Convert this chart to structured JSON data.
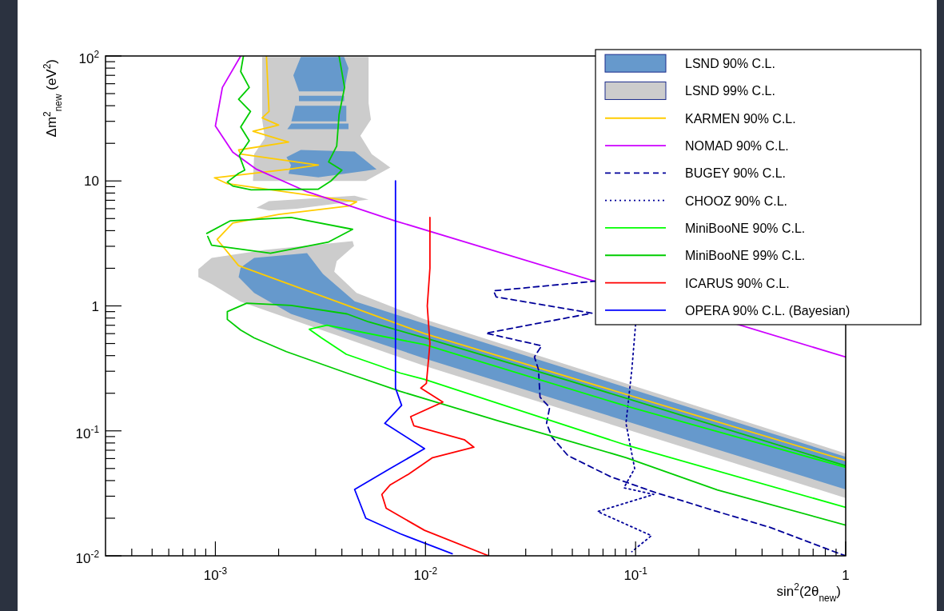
{
  "chart_data": {
    "type": "line",
    "xlabel": "sin$^{2}$(2θ$_{new}$)",
    "ylabel": "Δm$^{2}$$_{new}$ (eV$^{2}$)",
    "log": "xy",
    "xlim": [
      0.0003,
      1
    ],
    "ylim": [
      0.01,
      100
    ],
    "xticks": [
      {
        "value": 0.0004,
        "label": null
      },
      {
        "value": 0.0005,
        "label": null
      },
      {
        "value": 0.0006,
        "label": null
      },
      {
        "value": 0.0007,
        "label": null
      },
      {
        "value": 0.0008,
        "label": null
      },
      {
        "value": 0.0009,
        "label": null
      },
      {
        "value": 0.001,
        "label": "10$^{-3}$"
      },
      {
        "value": 0.002,
        "label": null
      },
      {
        "value": 0.003,
        "label": null
      },
      {
        "value": 0.004,
        "label": null
      },
      {
        "value": 0.005,
        "label": null
      },
      {
        "value": 0.006,
        "label": null
      },
      {
        "value": 0.007,
        "label": null
      },
      {
        "value": 0.008,
        "label": null
      },
      {
        "value": 0.009,
        "label": null
      },
      {
        "value": 0.01,
        "label": "10$^{-2}$"
      },
      {
        "value": 0.02,
        "label": null
      },
      {
        "value": 0.03,
        "label": null
      },
      {
        "value": 0.04,
        "label": null
      },
      {
        "value": 0.05,
        "label": null
      },
      {
        "value": 0.06,
        "label": null
      },
      {
        "value": 0.07,
        "label": null
      },
      {
        "value": 0.08,
        "label": null
      },
      {
        "value": 0.09,
        "label": null
      },
      {
        "value": 0.1,
        "label": "10$^{-1}$"
      },
      {
        "value": 0.2,
        "label": null
      },
      {
        "value": 0.3,
        "label": null
      },
      {
        "value": 0.4,
        "label": null
      },
      {
        "value": 0.5,
        "label": null
      },
      {
        "value": 0.6,
        "label": null
      },
      {
        "value": 0.7,
        "label": null
      },
      {
        "value": 0.8,
        "label": null
      },
      {
        "value": 0.9,
        "label": null
      },
      1
    ],
    "yticks": [
      {
        "value": 0.01,
        "label": "10$^{-2}$"
      },
      {
        "value": 0.02,
        "label": null
      },
      {
        "value": 0.03,
        "label": null
      },
      {
        "value": 0.04,
        "label": null
      },
      {
        "value": 0.05,
        "label": null
      },
      {
        "value": 0.06,
        "label": null
      },
      {
        "value": 0.07,
        "label": null
      },
      {
        "value": 0.08,
        "label": null
      },
      {
        "value": 0.09,
        "label": null
      },
      {
        "value": 0.1,
        "label": "10$^{-1}$"
      },
      {
        "value": 0.2,
        "label": null
      },
      {
        "value": 0.3,
        "label": null
      },
      {
        "value": 0.4,
        "label": null
      },
      {
        "value": 0.5,
        "label": null
      },
      {
        "value": 0.6,
        "label": null
      },
      {
        "value": 0.7,
        "label": null
      },
      {
        "value": 0.8,
        "label": null
      },
      {
        "value": 0.9,
        "label": null
      },
      1,
      {
        "value": 2,
        "label": null
      },
      {
        "value": 3,
        "label": null
      },
      {
        "value": 4,
        "label": null
      },
      {
        "value": 5,
        "label": null
      },
      {
        "value": 6,
        "label": null
      },
      {
        "value": 7,
        "label": null
      },
      {
        "value": 8,
        "label": null
      },
      {
        "value": 9,
        "label": null
      },
      10,
      {
        "value": 20,
        "label": null
      },
      {
        "value": 30,
        "label": null
      },
      {
        "value": 40,
        "label": null
      },
      {
        "value": 50,
        "label": null
      },
      {
        "value": 60,
        "label": null
      },
      {
        "value": 70,
        "label": null
      },
      {
        "value": 80,
        "label": null
      },
      {
        "value": 90,
        "label": null
      },
      {
        "value": 100,
        "label": "10$^{2}$"
      }
    ],
    "grid": false,
    "legend": "top right",
    "series": [
      {
        "name": "LSND 90% C.L.",
        "type": "area",
        "color": "#6699cc",
        "x": [
          0.00255,
          0.0041,
          0.0043,
          0.0041,
          0.0025,
          0.00235,
          null,
          0.0025,
          0.0041,
          0.0041,
          0.0025,
          null,
          0.0024,
          0.0042,
          0.0042,
          0.0023,
          null,
          0.0023,
          0.0043,
          0.0043,
          0.0022,
          null,
          0.00255,
          0.0046,
          0.00585,
          0.00309,
          0.00223,
          0.00229,
          0.00218,
          null,
          0.00132,
          0.00153,
          0.00273,
          0.00325,
          0.0046,
          0.0099,
          1,
          1,
          0.0099,
          0.00229,
          0.00153,
          0.00129
        ],
        "values": [
          98,
          98,
          80,
          52,
          52,
          70,
          null,
          48,
          48,
          43.5,
          43.5,
          null,
          40,
          40,
          30,
          30,
          null,
          28.8,
          28.8,
          26,
          26,
          null,
          17.7,
          17.2,
          12.4,
          10.7,
          11.4,
          13.4,
          15.5,
          null,
          2.03,
          2.42,
          2.64,
          1.8,
          1.09,
          0.72,
          0.062,
          0.034,
          0.38,
          0.863,
          1.27,
          1.7
        ]
      },
      {
        "name": "LSND 99% C.L.",
        "type": "area",
        "color": "#cccccc",
        "x": [
          0.00167,
          0.00536,
          0.00536,
          0.0055,
          0.0049,
          0.00555,
          0.0068,
          0.0052,
          0.00151,
          0.00153,
          0.00172,
          0.00167,
          null,
          0.00157,
          0.0018,
          0.0046,
          0.00536,
          0.00244,
          0.0018,
          null,
          0.00083,
          0.00096,
          0.00172,
          0.0045,
          0.00457,
          0.00378,
          0.00368,
          0.0047,
          0.0099,
          1,
          1,
          0.0099,
          0.00132,
          0.000975,
          0.00083
        ],
        "values": [
          98,
          98,
          42,
          31,
          23,
          16.4,
          12.8,
          10,
          10,
          16.4,
          22,
          31,
          null,
          6.1,
          6.9,
          7.6,
          7.1,
          6.0,
          5.8,
          null,
          1.97,
          2.42,
          2.81,
          3.3,
          3.02,
          2.28,
          1.88,
          1.27,
          0.78,
          0.066,
          0.029,
          0.331,
          1.08,
          1.47,
          1.7
        ]
      },
      {
        "name": "KARMEN 90% C.L.",
        "color": "#ffcc00",
        "x": [
          0.00175,
          0.0018,
          0.00167,
          0.002,
          0.00151,
          0.00223,
          0.00129,
          0.00132,
          0.00309,
          0.00223,
          0.00099,
          0.00114,
          0.0047,
          0.0043,
          0.002,
          0.00121,
          0.00102,
          0.00129,
          0.0099,
          1
        ],
        "values": [
          100,
          36,
          32,
          28,
          25,
          20.5,
          17.7,
          16.4,
          13.4,
          12.4,
          10.6,
          9.5,
          6.8,
          6.3,
          5.4,
          4.6,
          3.4,
          2.1,
          0.6,
          0.058
        ]
      },
      {
        "name": "NOMAD 90% C.L.",
        "color": "#cc00ff",
        "x": [
          0.00132,
          0.00108,
          0.001,
          0.00121,
          0.00157,
          0.00273,
          0.00715,
          1
        ],
        "values": [
          100,
          56,
          27.5,
          17,
          12.4,
          8.2,
          4.8,
          0.39
        ]
      },
      {
        "name": "BUGEY 90% C.L.",
        "color": "#000099",
        "line_style": "dashed",
        "x": [
          0.065,
          0.0211,
          0.0217,
          0.062,
          0.0194,
          0.0357,
          0.033,
          0.0345,
          0.0351,
          0.039,
          0.0377,
          0.04,
          0.0476,
          0.076,
          0.125,
          0.245,
          0.436,
          0.88,
          1
        ],
        "values": [
          1.58,
          1.32,
          1.18,
          0.875,
          0.605,
          0.48,
          0.39,
          0.31,
          0.186,
          0.154,
          0.115,
          0.089,
          0.0635,
          0.043,
          0.032,
          0.0226,
          0.0169,
          0.0108,
          0.01
        ]
      },
      {
        "name": "CHOOZ 90% C.L.",
        "color": "#000099",
        "line_style": "dotted",
        "x": [
          0.1,
          0.096,
          0.09,
          0.099,
          0.088,
          0.122,
          0.066,
          0.119,
          0.096
        ],
        "values": [
          0.71,
          0.31,
          0.115,
          0.05,
          0.035,
          0.031,
          0.0226,
          0.0145,
          0.0108
        ]
      },
      {
        "name": "MiniBooNE 90% C.L.",
        "color": "#00ff00",
        "x": [
          1,
          0.09,
          0.0099,
          0.0034,
          0.0028,
          0.0032,
          0.0042,
          0.0076,
          0.0099,
          0.09,
          1
        ],
        "values": [
          0.051,
          0.158,
          0.49,
          0.7,
          0.65,
          0.555,
          0.41,
          0.29,
          0.258,
          0.077,
          0.0244
        ]
      },
      {
        "name": "MiniBooNE 99% C.L.",
        "color": "#00cc00",
        "x": [
          0.00136,
          0.00132,
          0.00145,
          0.00129,
          0.00147,
          0.00132,
          0.00145,
          0.0013,
          0.00138,
          0.00129,
          0.00114,
          0.00121,
          0.00148,
          0.00309,
          0.00355,
          0.004,
          0.00346,
          0.00378,
          0.00388,
          0.00412,
          0.00388,
          null,
          0.00091,
          0.00118,
          0.00229,
          0.0045,
          0.00346,
          0.00183,
          0.00096,
          0.00092,
          null,
          1,
          0.182,
          0.049,
          0.0099,
          0.00536,
          0.00423,
          0.00229,
          0.00141,
          0.00114,
          0.00114,
          0.00132,
          0.00153,
          0.00218,
          0.00423,
          0.0076,
          0.0223,
          0.0426,
          0.0903,
          0.245,
          1
        ],
        "values": [
          100,
          75,
          56,
          45,
          36,
          27,
          21,
          16,
          12.2,
          11.5,
          9.8,
          9.1,
          8.5,
          8.6,
          10,
          12.2,
          14.2,
          19,
          34,
          56,
          100,
          null,
          3.8,
          4.8,
          5.1,
          4.1,
          3.25,
          2.64,
          3.06,
          3.6,
          null,
          0.0525,
          0.127,
          0.25,
          0.555,
          0.745,
          0.863,
          1.01,
          1.05,
          0.9,
          0.78,
          0.64,
          0.555,
          0.43,
          0.29,
          0.207,
          0.12,
          0.088,
          0.061,
          0.0337,
          0.0176
        ]
      },
      {
        "name": "ICARUS 90% C.L.",
        "color": "#ff0000",
        "x": [
          0.0105,
          0.0105,
          0.0102,
          0.0105,
          0.0101,
          0.0095,
          0.0121,
          0.0085,
          0.0088,
          0.0153,
          0.017,
          0.0108,
          0.0083,
          0.0068,
          0.0062,
          0.0065,
          0.0099,
          0.02
        ],
        "values": [
          5.1,
          2,
          1,
          0.5,
          0.24,
          0.22,
          0.17,
          0.13,
          0.11,
          0.085,
          0.074,
          0.061,
          0.045,
          0.037,
          0.031,
          0.024,
          0.016,
          0.01
        ]
      },
      {
        "name": "OPERA 90% C.L. (Bayesian)",
        "color": "#0000ff",
        "x": [
          0.0072,
          0.0072,
          0.0072,
          0.0072,
          0.0077,
          0.0064,
          0.0099,
          0.0068,
          0.0046,
          0.0052,
          0.0076,
          0.0134
        ],
        "values": [
          10,
          1,
          0.3,
          0.22,
          0.16,
          0.115,
          0.072,
          0.05,
          0.034,
          0.02,
          0.015,
          0.0104
        ]
      }
    ]
  }
}
